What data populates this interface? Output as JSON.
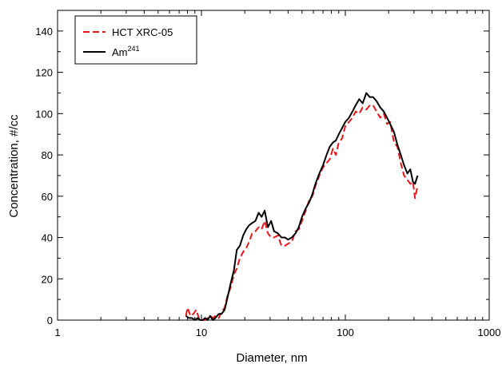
{
  "chart_data": {
    "type": "line",
    "xlabel": "Diameter, nm",
    "ylabel": "Concentration, #/cc",
    "x_scale": "log",
    "xlim": [
      1,
      1000
    ],
    "ylim": [
      0,
      150
    ],
    "x_ticks": [
      "1",
      "10",
      "100",
      "1000"
    ],
    "y_ticks": [
      "0",
      "20",
      "40",
      "60",
      "80",
      "100",
      "120",
      "140"
    ],
    "grid": false,
    "legend_position": "top-left",
    "series": [
      {
        "name": "HCT XRC-05",
        "name_sup": "",
        "style": "dashed",
        "color": "#e8161b",
        "x": [
          7.8,
          8.0,
          8.4,
          8.8,
          9.2,
          9.6,
          10.0,
          10.5,
          11.0,
          11.5,
          12.0,
          12.5,
          13.2,
          13.8,
          14.5,
          15.2,
          16.0,
          16.8,
          17.6,
          18.5,
          19.5,
          20.5,
          21.5,
          22.5,
          23.7,
          25.0,
          26.2,
          27.5,
          29.0,
          30.5,
          32.0,
          34.0,
          36.0,
          38.0,
          40.0,
          42.5,
          45.0,
          47.5,
          50.0,
          53.0,
          56.0,
          59.0,
          62.0,
          66.0,
          70.0,
          74.0,
          78.0,
          82.0,
          86.0,
          90.0,
          95.0,
          100,
          106,
          112,
          118,
          125,
          132,
          140,
          148,
          156,
          165,
          175,
          185,
          195,
          205,
          218,
          230,
          243,
          256,
          270,
          283,
          295,
          305,
          318
        ],
        "y": [
          2,
          6,
          2,
          3,
          5,
          1,
          0,
          0,
          1,
          2,
          1,
          2,
          1,
          4,
          6,
          12,
          16,
          22,
          25,
          30,
          33,
          35,
          38,
          42,
          43,
          45,
          44,
          48,
          42,
          40,
          40,
          41,
          36,
          36,
          37,
          38,
          43,
          44,
          48,
          53,
          58,
          60,
          65,
          70,
          74,
          76,
          78,
          83,
          80,
          86,
          88,
          94,
          96,
          98,
          101,
          100,
          103,
          102,
          104,
          104,
          101,
          98,
          100,
          95,
          96,
          86,
          84,
          76,
          70,
          68,
          66,
          67,
          59,
          65
        ]
      },
      {
        "name": "Am",
        "name_sup": "241",
        "style": "solid",
        "color": "#000000",
        "x": [
          7.8,
          8.2,
          8.6,
          9.0,
          9.4,
          9.8,
          10.2,
          10.6,
          11.0,
          11.5,
          12.0,
          12.5,
          13.2,
          13.8,
          14.5,
          15.2,
          16.0,
          16.8,
          17.6,
          18.5,
          19.5,
          20.5,
          21.5,
          22.5,
          23.7,
          25.0,
          26.2,
          27.5,
          29.0,
          30.5,
          32.0,
          34.0,
          36.0,
          38.0,
          40.0,
          42.5,
          45.0,
          47.5,
          50.0,
          53.0,
          56.0,
          59.0,
          62.0,
          66.0,
          70.0,
          74.0,
          78.0,
          82.0,
          86.0,
          90.0,
          95.0,
          100,
          106,
          112,
          118,
          125,
          132,
          140,
          148,
          156,
          165,
          175,
          185,
          195,
          205,
          218,
          230,
          243,
          256,
          270,
          283,
          295,
          305,
          318
        ],
        "y": [
          2,
          1,
          1,
          0,
          1,
          0,
          0,
          1,
          0,
          2,
          0,
          1,
          3,
          3,
          5,
          11,
          18,
          24,
          34,
          36,
          41,
          44,
          46,
          47,
          48,
          52,
          50,
          53,
          45,
          48,
          43,
          42,
          40,
          40,
          39,
          40,
          42,
          45,
          50,
          54,
          57,
          61,
          66,
          71,
          75,
          80,
          84,
          86,
          87,
          90,
          93,
          96,
          98,
          101,
          104,
          107,
          105,
          110,
          108,
          108,
          106,
          103,
          101,
          98,
          95,
          91,
          85,
          80,
          75,
          71,
          73,
          67,
          66,
          70
        ]
      }
    ]
  }
}
